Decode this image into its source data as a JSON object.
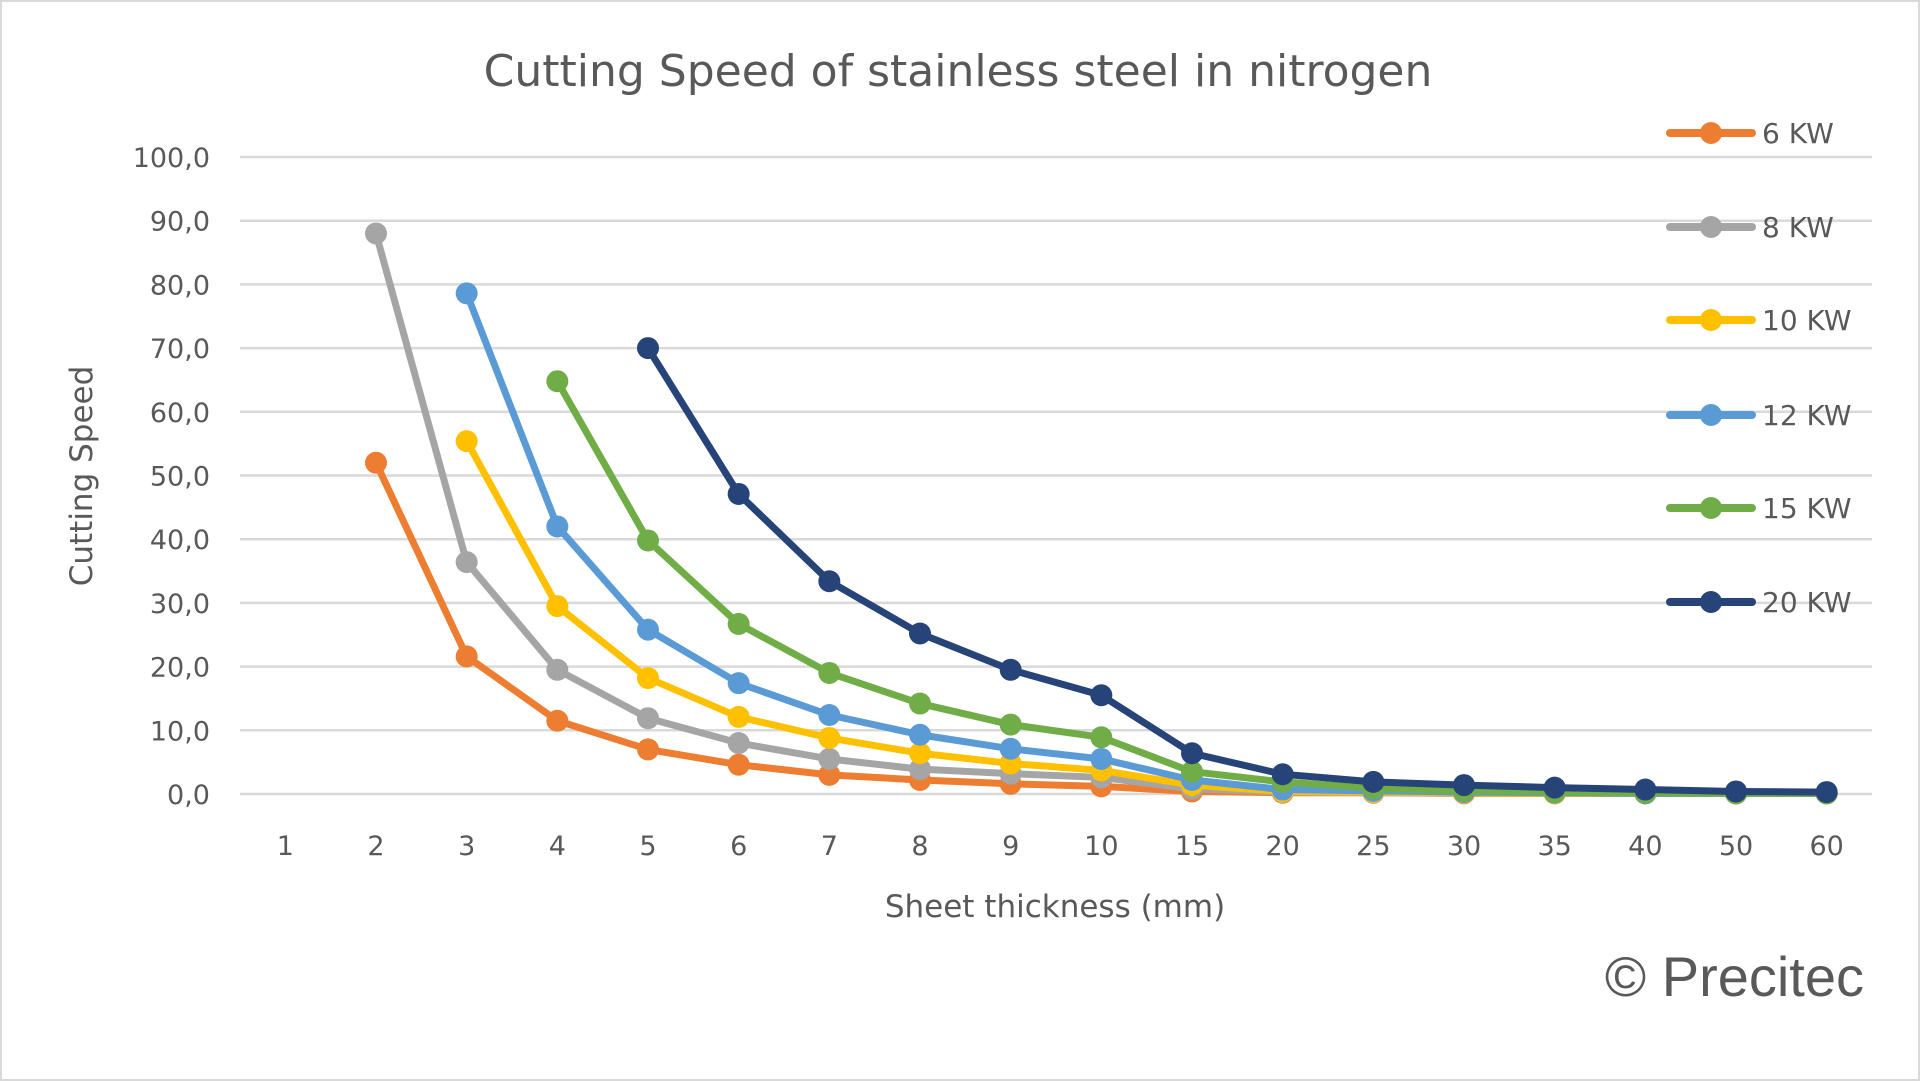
{
  "chart_data": {
    "type": "line",
    "title": "Cutting Speed of stainless steel in nitrogen",
    "xlabel": "Sheet thickness (mm)",
    "ylabel": "Cutting Speed",
    "ylim": [
      0,
      100
    ],
    "yticks": [
      "0,0",
      "10,0",
      "20,0",
      "30,0",
      "40,0",
      "50,0",
      "60,0",
      "70,0",
      "80,0",
      "90,0",
      "100,0"
    ],
    "ytick_values": [
      0,
      10,
      20,
      30,
      40,
      50,
      60,
      70,
      80,
      90,
      100
    ],
    "categories": [
      "1",
      "2",
      "3",
      "4",
      "5",
      "6",
      "7",
      "8",
      "9",
      "10",
      "15",
      "20",
      "25",
      "30",
      "35",
      "40",
      "50",
      "60"
    ],
    "grid": true,
    "legend_position": "right",
    "series": [
      {
        "name": "6 KW",
        "color": "#ED7D31",
        "values": [
          null,
          52.0,
          21.6,
          11.5,
          7.0,
          4.6,
          3.0,
          2.2,
          1.6,
          1.2,
          0.4,
          0.2,
          0.2,
          0.1,
          0.1,
          0.1,
          0.1,
          0.1
        ]
      },
      {
        "name": "8 KW",
        "color": "#A5A5A5",
        "values": [
          null,
          88.0,
          36.4,
          19.5,
          11.9,
          8.0,
          5.5,
          3.9,
          3.2,
          2.6,
          0.8,
          0.3,
          0.2,
          0.2,
          0.1,
          0.1,
          0.1,
          0.1
        ]
      },
      {
        "name": "10 KW",
        "color": "#FFC000",
        "values": [
          null,
          null,
          55.4,
          29.5,
          18.2,
          12.1,
          8.8,
          6.4,
          4.8,
          3.7,
          1.4,
          0.4,
          0.3,
          0.2,
          0.1,
          0.1,
          0.1,
          0.1
        ]
      },
      {
        "name": "12 KW",
        "color": "#5B9BD5",
        "values": [
          null,
          null,
          78.6,
          42.0,
          25.8,
          17.4,
          12.4,
          9.3,
          7.1,
          5.5,
          2.2,
          0.7,
          0.5,
          0.3,
          0.2,
          0.1,
          0.1,
          0.1
        ]
      },
      {
        "name": "15 KW",
        "color": "#70AD47",
        "values": [
          null,
          null,
          null,
          64.8,
          39.8,
          26.7,
          19.0,
          14.2,
          10.9,
          8.9,
          3.5,
          1.9,
          0.9,
          0.5,
          0.3,
          0.2,
          0.1,
          0.1
        ]
      },
      {
        "name": "20 KW",
        "color": "#264478",
        "values": [
          null,
          null,
          null,
          null,
          70.0,
          47.1,
          33.4,
          25.2,
          19.5,
          15.5,
          6.4,
          3.1,
          1.9,
          1.4,
          1.0,
          0.7,
          0.4,
          0.3
        ]
      }
    ],
    "gridline_color": "#D9D9D9",
    "text_color": "#595959"
  },
  "watermark": "© Precitec"
}
